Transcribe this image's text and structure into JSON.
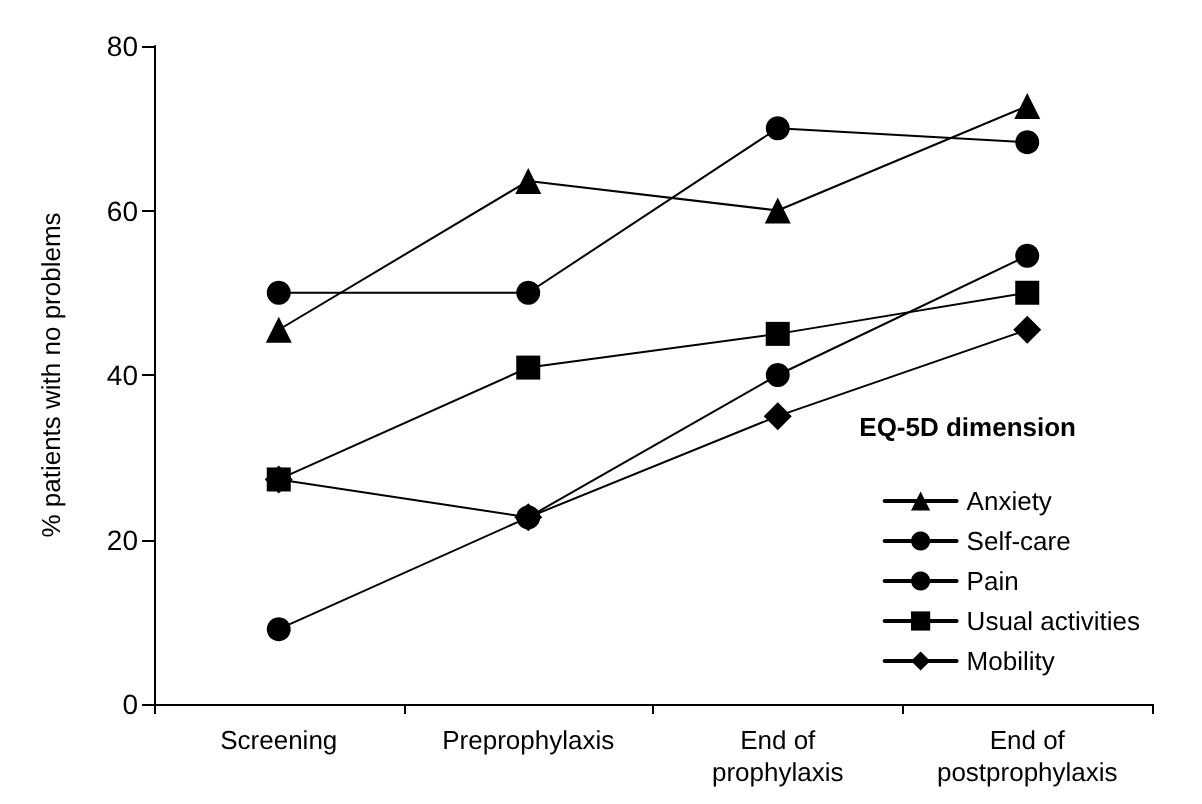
{
  "chart_data": {
    "type": "line",
    "ylabel": "% patients with no problems",
    "legend_title": "EQ-5D dimension",
    "categories": [
      "Screening",
      "Preprophylaxis",
      "End of\nprophylaxis",
      "End of\npostprophylaxis"
    ],
    "series": [
      {
        "name": "Anxiety",
        "color": "#000000",
        "marker": "triangle",
        "values": [
          45.5,
          63.6,
          60,
          72.7
        ]
      },
      {
        "name": "Self-care",
        "color": "#000000",
        "marker": "circle",
        "values": [
          50,
          50,
          70,
          68.3
        ]
      },
      {
        "name": "Pain",
        "color": "#000000",
        "marker": "circle",
        "values": [
          9.1,
          22.7,
          40,
          54.5
        ]
      },
      {
        "name": "Usual activities",
        "color": "#000000",
        "marker": "square",
        "values": [
          27.3,
          40.9,
          45,
          50
        ]
      },
      {
        "name": "Mobility",
        "color": "#000000",
        "marker": "diamond",
        "values": [
          27.3,
          22.7,
          35,
          45.5
        ]
      }
    ],
    "ylim": [
      0,
      80
    ],
    "yticks": [
      0,
      20,
      40,
      60,
      80
    ],
    "grid": false,
    "legend": "bottom right",
    "line_style": "solid"
  }
}
